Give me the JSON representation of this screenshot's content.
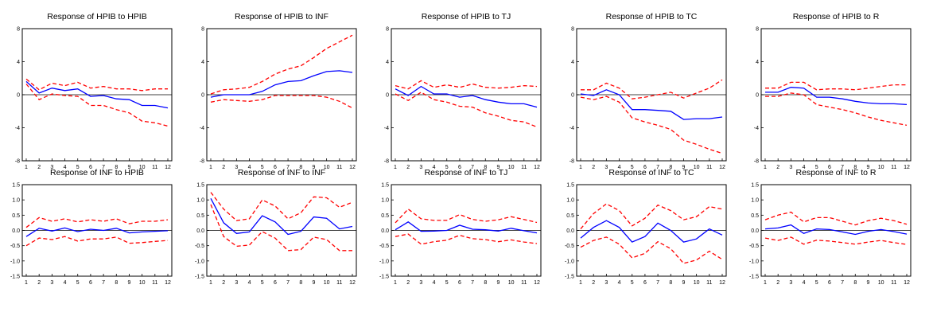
{
  "chart_data": [
    {
      "type": "line",
      "title": "Response of HPIB to HPIB",
      "x": [
        1,
        2,
        3,
        4,
        5,
        6,
        7,
        8,
        9,
        10,
        11,
        12
      ],
      "yticks": [
        "8",
        "4",
        "0",
        "-4",
        "-8"
      ],
      "ylim": [
        -8,
        8
      ],
      "series": [
        {
          "style": "solid",
          "color": "#0000ff",
          "values": [
            1.6,
            0.2,
            0.8,
            0.5,
            0.7,
            -0.2,
            -0.1,
            -0.5,
            -0.6,
            -1.3,
            -1.3,
            -1.6
          ]
        },
        {
          "style": "dashed",
          "color": "#ff0000",
          "values": [
            1.9,
            0.6,
            1.4,
            1.1,
            1.5,
            0.8,
            1.0,
            0.7,
            0.7,
            0.5,
            0.7,
            0.7
          ]
        },
        {
          "style": "dashed",
          "color": "#ff0000",
          "values": [
            1.3,
            -0.6,
            0.1,
            -0.1,
            -0.2,
            -1.3,
            -1.3,
            -1.8,
            -2.2,
            -3.2,
            -3.4,
            -3.8
          ]
        }
      ]
    },
    {
      "type": "line",
      "title": "Response of HPIB to INF",
      "x": [
        1,
        2,
        3,
        4,
        5,
        6,
        7,
        8,
        9,
        10,
        11,
        12
      ],
      "yticks": [
        "8",
        "4",
        "0",
        "-4",
        "-8"
      ],
      "ylim": [
        -8,
        8
      ],
      "series": [
        {
          "style": "solid",
          "color": "#0000ff",
          "values": [
            -0.3,
            0.0,
            0.0,
            0.0,
            0.4,
            1.2,
            1.6,
            1.7,
            2.3,
            2.8,
            2.9,
            2.7
          ]
        },
        {
          "style": "dashed",
          "color": "#ff0000",
          "values": [
            0.1,
            0.6,
            0.7,
            0.9,
            1.6,
            2.5,
            3.1,
            3.5,
            4.5,
            5.6,
            6.4,
            7.2
          ]
        },
        {
          "style": "dashed",
          "color": "#ff0000",
          "values": [
            -0.9,
            -0.6,
            -0.7,
            -0.8,
            -0.6,
            -0.1,
            -0.1,
            -0.1,
            -0.1,
            -0.3,
            -0.8,
            -1.6
          ]
        }
      ]
    },
    {
      "type": "line",
      "title": "Response of HPIB to TJ",
      "x": [
        1,
        2,
        3,
        4,
        5,
        6,
        7,
        8,
        9,
        10,
        11,
        12
      ],
      "yticks": [
        "8",
        "4",
        "0",
        "-4",
        "-8"
      ],
      "ylim": [
        -8,
        8
      ],
      "series": [
        {
          "style": "solid",
          "color": "#0000ff",
          "values": [
            0.7,
            -0.1,
            1.0,
            0.1,
            0.1,
            -0.3,
            -0.1,
            -0.6,
            -0.9,
            -1.1,
            -1.1,
            -1.5
          ]
        },
        {
          "style": "dashed",
          "color": "#ff0000",
          "values": [
            1.1,
            0.7,
            1.7,
            0.9,
            1.2,
            0.9,
            1.3,
            0.9,
            0.8,
            0.9,
            1.1,
            1.0
          ]
        },
        {
          "style": "dashed",
          "color": "#ff0000",
          "values": [
            0.1,
            -0.7,
            0.3,
            -0.6,
            -0.9,
            -1.4,
            -1.5,
            -2.2,
            -2.6,
            -3.1,
            -3.3,
            -3.9
          ]
        }
      ]
    },
    {
      "type": "line",
      "title": "Response of HPIB to TC",
      "x": [
        1,
        2,
        3,
        4,
        5,
        6,
        7,
        8,
        9,
        10,
        11,
        12
      ],
      "yticks": [
        "8",
        "4",
        "0",
        "-4",
        "-8"
      ],
      "ylim": [
        -8,
        8
      ],
      "series": [
        {
          "style": "solid",
          "color": "#0000ff",
          "values": [
            0.1,
            -0.1,
            0.6,
            0.0,
            -1.8,
            -1.8,
            -1.9,
            -2.0,
            -3.0,
            -2.9,
            -2.9,
            -2.7
          ]
        },
        {
          "style": "dashed",
          "color": "#ff0000",
          "values": [
            0.6,
            0.6,
            1.4,
            0.8,
            -0.5,
            -0.3,
            0.0,
            0.3,
            -0.4,
            0.2,
            0.8,
            1.8
          ]
        },
        {
          "style": "dashed",
          "color": "#ff0000",
          "values": [
            -0.3,
            -0.6,
            -0.2,
            -0.9,
            -2.8,
            -3.3,
            -3.7,
            -4.2,
            -5.5,
            -6.0,
            -6.6,
            -7.1
          ]
        }
      ]
    },
    {
      "type": "line",
      "title": "Response of HPIB to R",
      "x": [
        1,
        2,
        3,
        4,
        5,
        6,
        7,
        8,
        9,
        10,
        11,
        12
      ],
      "yticks": [
        "8",
        "4",
        "0",
        "-4",
        "-8"
      ],
      "ylim": [
        -8,
        8
      ],
      "series": [
        {
          "style": "solid",
          "color": "#0000ff",
          "values": [
            0.3,
            0.3,
            0.9,
            0.8,
            -0.3,
            -0.3,
            -0.5,
            -0.8,
            -1.0,
            -1.1,
            -1.1,
            -1.2
          ]
        },
        {
          "style": "dashed",
          "color": "#ff0000",
          "values": [
            0.8,
            0.8,
            1.5,
            1.5,
            0.6,
            0.7,
            0.7,
            0.6,
            0.8,
            1.0,
            1.2,
            1.2
          ]
        },
        {
          "style": "dashed",
          "color": "#ff0000",
          "values": [
            -0.2,
            -0.2,
            0.2,
            0.0,
            -1.2,
            -1.5,
            -1.8,
            -2.2,
            -2.7,
            -3.1,
            -3.4,
            -3.7
          ]
        }
      ]
    },
    {
      "type": "line",
      "title": "Response of INF to HPIB",
      "x": [
        1,
        2,
        3,
        4,
        5,
        6,
        7,
        8,
        9,
        10,
        11,
        12
      ],
      "yticks": [
        "1.5",
        "1.0",
        "0.5",
        "0.0",
        "-0.5",
        "-1.0",
        "-1.5"
      ],
      "ylim": [
        -1.5,
        1.5
      ],
      "series": [
        {
          "style": "solid",
          "color": "#0000ff",
          "values": [
            -0.2,
            0.07,
            -0.02,
            0.08,
            -0.04,
            0.04,
            0.0,
            0.07,
            -0.08,
            -0.05,
            -0.03,
            -0.01
          ]
        },
        {
          "style": "dashed",
          "color": "#ff0000",
          "values": [
            0.1,
            0.42,
            0.3,
            0.38,
            0.28,
            0.35,
            0.3,
            0.38,
            0.22,
            0.3,
            0.3,
            0.35
          ]
        },
        {
          "style": "dashed",
          "color": "#ff0000",
          "values": [
            -0.5,
            -0.25,
            -0.3,
            -0.2,
            -0.35,
            -0.28,
            -0.28,
            -0.22,
            -0.42,
            -0.4,
            -0.36,
            -0.33
          ]
        }
      ]
    },
    {
      "type": "line",
      "title": "Response of INF to INF",
      "x": [
        1,
        2,
        3,
        4,
        5,
        6,
        7,
        8,
        9,
        10,
        11,
        12
      ],
      "yticks": [
        "1.5",
        "1.0",
        "0.5",
        "0.0",
        "-0.5",
        "-1.0",
        "-1.5"
      ],
      "ylim": [
        -1.5,
        1.5
      ],
      "series": [
        {
          "style": "solid",
          "color": "#0000ff",
          "values": [
            1.05,
            0.25,
            -0.1,
            -0.05,
            0.48,
            0.28,
            -0.13,
            -0.03,
            0.44,
            0.4,
            0.05,
            0.13
          ]
        },
        {
          "style": "dashed",
          "color": "#ff0000",
          "values": [
            1.25,
            0.7,
            0.32,
            0.38,
            1.0,
            0.8,
            0.38,
            0.58,
            1.1,
            1.07,
            0.76,
            0.92
          ]
        },
        {
          "style": "dashed",
          "color": "#ff0000",
          "values": [
            0.85,
            -0.2,
            -0.52,
            -0.48,
            -0.04,
            -0.25,
            -0.66,
            -0.63,
            -0.22,
            -0.3,
            -0.66,
            -0.66
          ]
        }
      ]
    },
    {
      "type": "line",
      "title": "Response of INF to TJ",
      "x": [
        1,
        2,
        3,
        4,
        5,
        6,
        7,
        8,
        9,
        10,
        11,
        12
      ],
      "yticks": [
        "1.5",
        "1.0",
        "0.5",
        "0.0",
        "-0.5",
        "-1.0",
        "-1.5"
      ],
      "ylim": [
        -1.5,
        1.5
      ],
      "series": [
        {
          "style": "solid",
          "color": "#0000ff",
          "values": [
            0.02,
            0.28,
            -0.03,
            -0.02,
            0.0,
            0.17,
            0.04,
            0.02,
            -0.02,
            0.07,
            -0.01,
            -0.08
          ]
        },
        {
          "style": "dashed",
          "color": "#ff0000",
          "values": [
            0.25,
            0.7,
            0.38,
            0.33,
            0.33,
            0.52,
            0.36,
            0.3,
            0.35,
            0.45,
            0.36,
            0.26
          ]
        },
        {
          "style": "dashed",
          "color": "#ff0000",
          "values": [
            -0.2,
            -0.12,
            -0.45,
            -0.37,
            -0.32,
            -0.16,
            -0.27,
            -0.3,
            -0.37,
            -0.31,
            -0.38,
            -0.43
          ]
        }
      ]
    },
    {
      "type": "line",
      "title": "Response of INF to TC",
      "x": [
        1,
        2,
        3,
        4,
        5,
        6,
        7,
        8,
        9,
        10,
        11,
        12
      ],
      "yticks": [
        "1.5",
        "1.0",
        "0.5",
        "0.0",
        "-0.5",
        "-1.0",
        "-1.5"
      ],
      "ylim": [
        -1.5,
        1.5
      ],
      "series": [
        {
          "style": "solid",
          "color": "#0000ff",
          "values": [
            -0.25,
            0.1,
            0.32,
            0.1,
            -0.38,
            -0.2,
            0.24,
            0.0,
            -0.38,
            -0.28,
            0.05,
            -0.15
          ]
        },
        {
          "style": "dashed",
          "color": "#ff0000",
          "values": [
            0.05,
            0.55,
            0.87,
            0.65,
            0.15,
            0.4,
            0.83,
            0.65,
            0.35,
            0.45,
            0.78,
            0.7
          ]
        },
        {
          "style": "dashed",
          "color": "#ff0000",
          "values": [
            -0.55,
            -0.33,
            -0.22,
            -0.45,
            -0.9,
            -0.75,
            -0.37,
            -0.6,
            -1.08,
            -0.97,
            -0.68,
            -0.95
          ]
        }
      ]
    },
    {
      "type": "line",
      "title": "Response of INF to R",
      "x": [
        1,
        2,
        3,
        4,
        5,
        6,
        7,
        8,
        9,
        10,
        11,
        12
      ],
      "yticks": [
        "1.5",
        "1.0",
        "0.5",
        "0.0",
        "-0.5",
        "-1.0",
        "-1.5"
      ],
      "ylim": [
        -1.5,
        1.5
      ],
      "series": [
        {
          "style": "solid",
          "color": "#0000ff",
          "values": [
            0.05,
            0.08,
            0.18,
            -0.1,
            0.05,
            0.03,
            -0.05,
            -0.13,
            -0.03,
            0.03,
            -0.04,
            -0.12
          ]
        },
        {
          "style": "dashed",
          "color": "#ff0000",
          "values": [
            0.35,
            0.5,
            0.6,
            0.28,
            0.42,
            0.42,
            0.3,
            0.18,
            0.32,
            0.4,
            0.32,
            0.2
          ]
        },
        {
          "style": "dashed",
          "color": "#ff0000",
          "values": [
            -0.25,
            -0.33,
            -0.22,
            -0.45,
            -0.32,
            -0.35,
            -0.4,
            -0.45,
            -0.38,
            -0.33,
            -0.4,
            -0.46
          ]
        }
      ]
    }
  ]
}
